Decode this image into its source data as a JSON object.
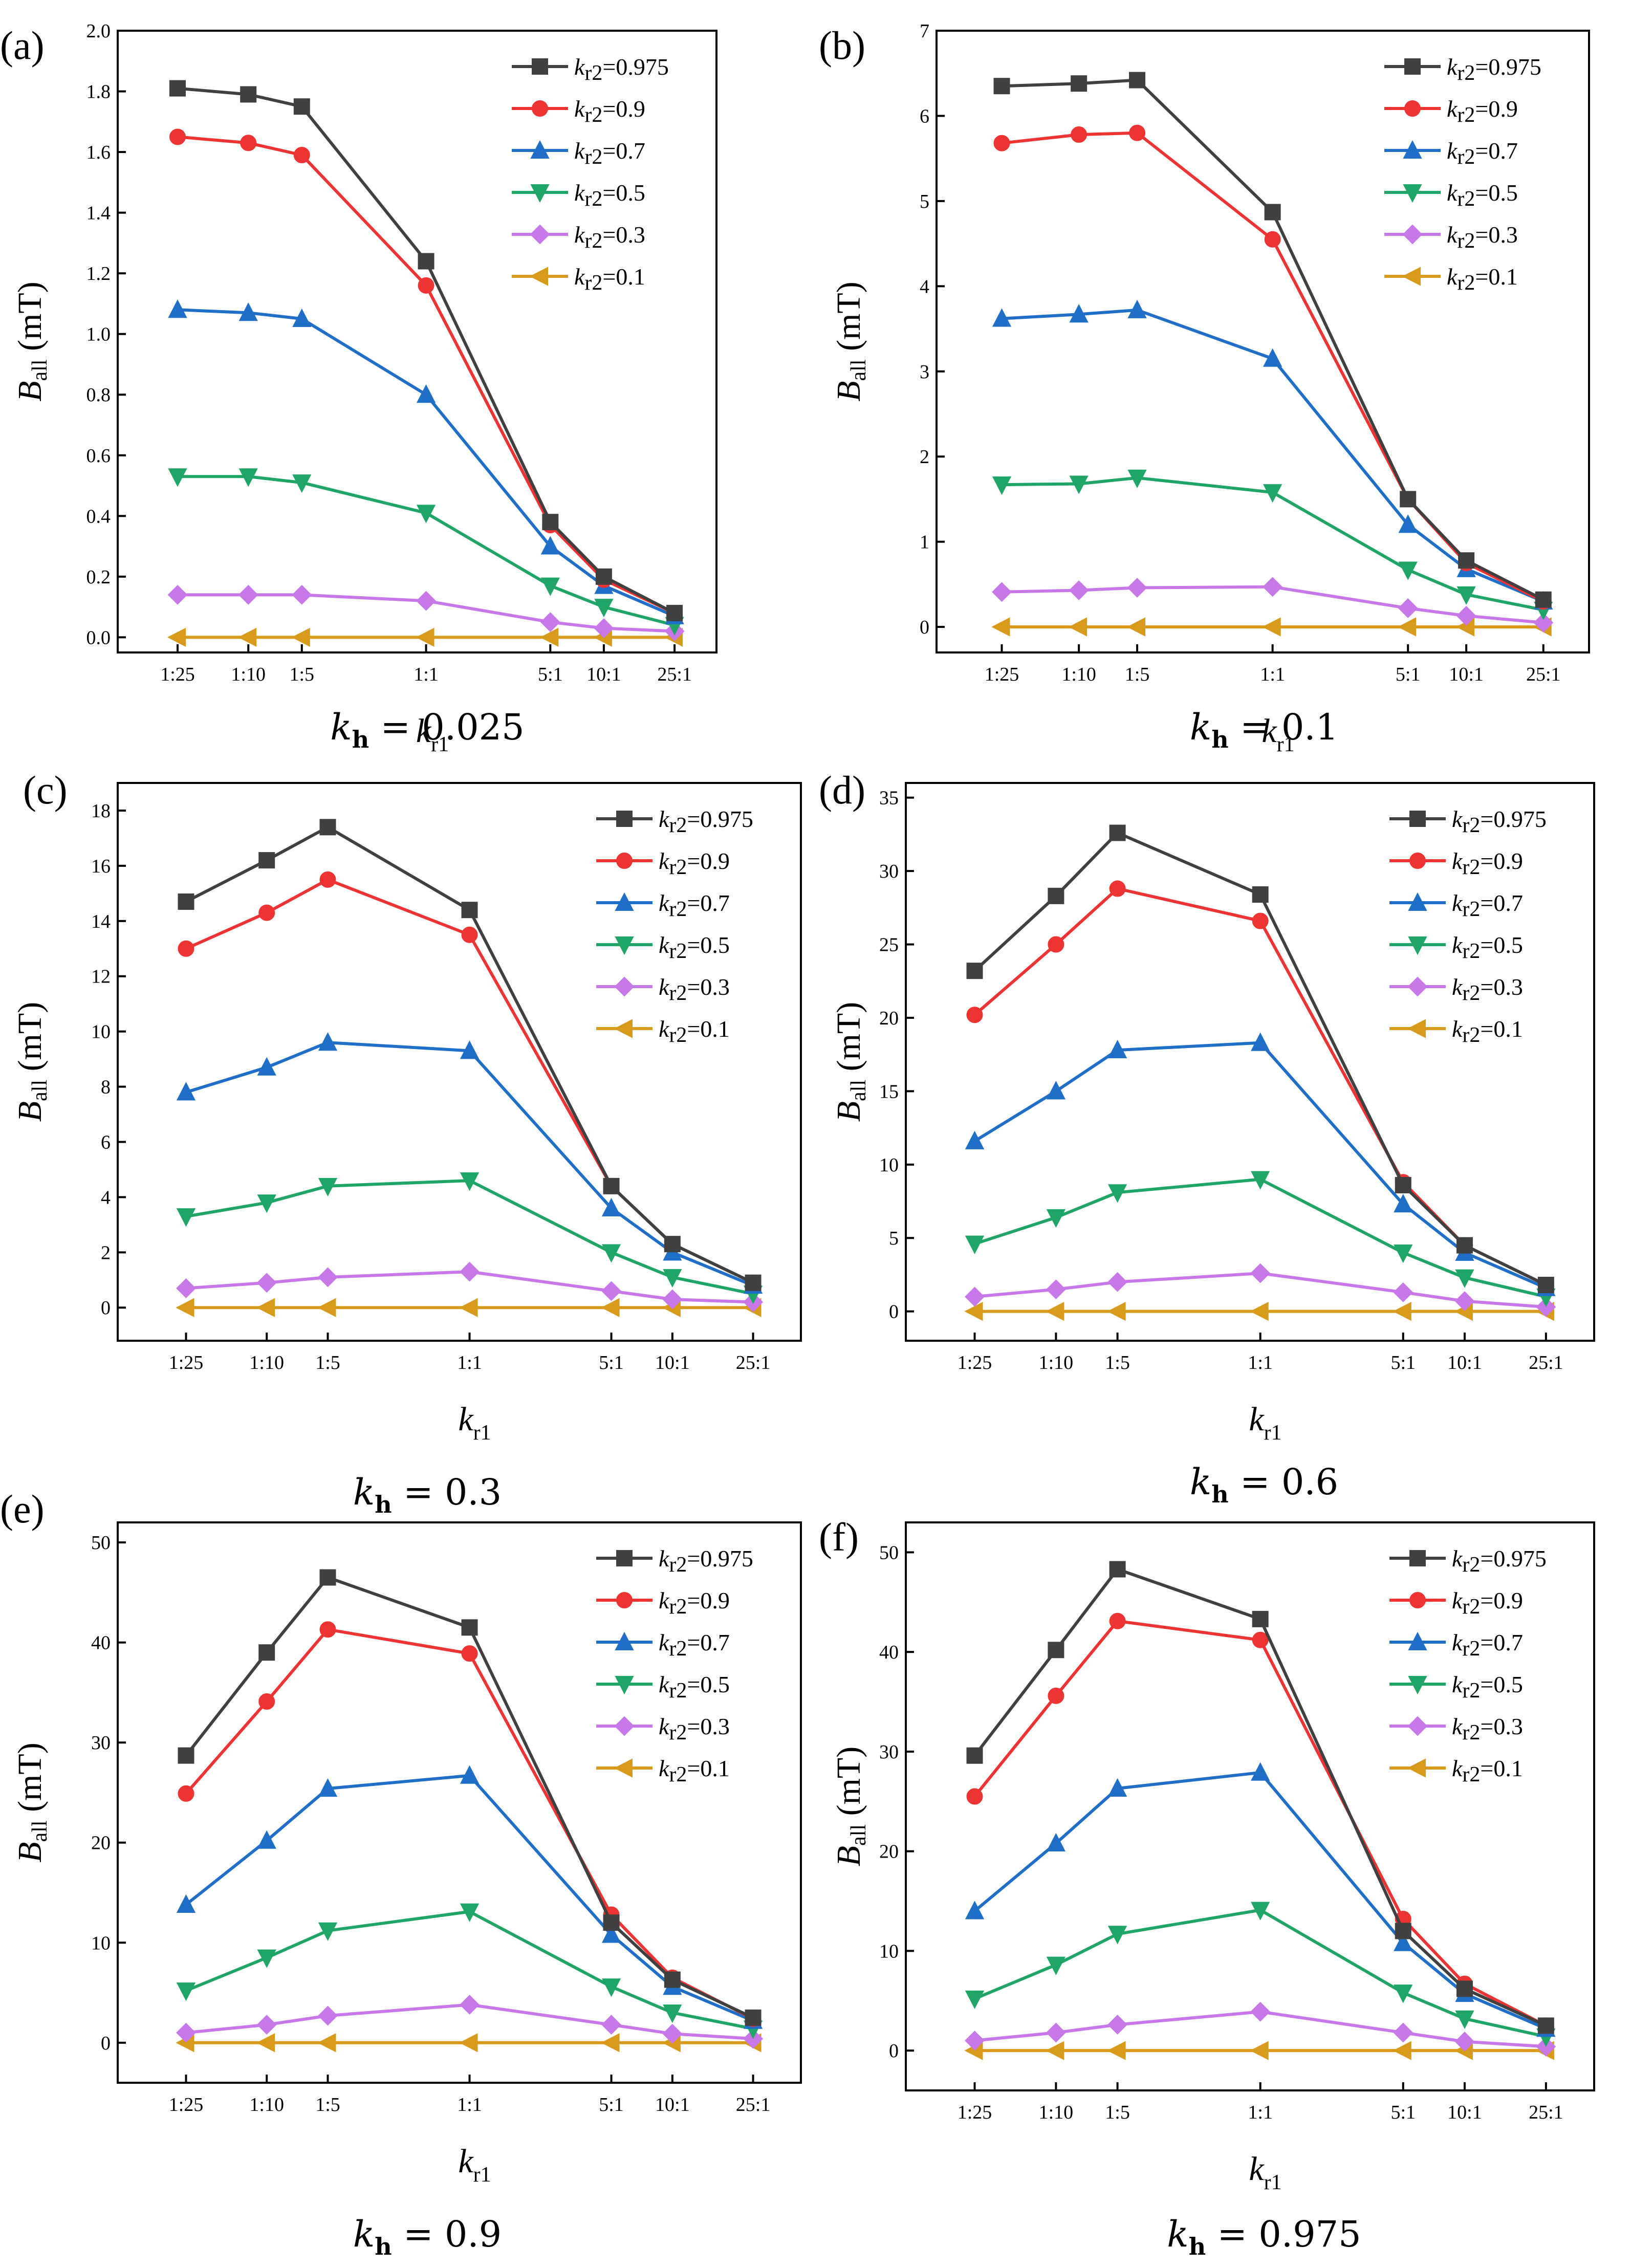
{
  "figure": {
    "ylabel_main": "B",
    "ylabel_sub": "all",
    "yunit": " (mT)",
    "xlabel_main": "k",
    "xlabel_sub": "r1"
  },
  "legend": {
    "prefix_main": "k",
    "prefix_sub": "r2",
    "colors": [
      "#404040",
      "#ee3333",
      "#1f6fc8",
      "#1fa667",
      "#c777e8",
      "#d89a1a"
    ],
    "markers": [
      "square",
      "circle",
      "triangle-up",
      "triangle-down",
      "diamond",
      "triangle-left"
    ]
  },
  "chart_data": [
    {
      "type": "line",
      "panel": "(a)",
      "kh_label": "k",
      "kh_sub": "h",
      "kh_value": " = 0.025",
      "categories": [
        "1:25",
        "1:10",
        "1:5",
        "1:1",
        "5:1",
        "10:1",
        "25:1"
      ],
      "x": [
        0.04,
        0.1,
        0.2,
        1,
        5,
        10,
        25
      ],
      "ylim": [
        -0.05,
        2.0
      ],
      "yticks": [
        "0.0",
        "0.2",
        "0.4",
        "0.6",
        "0.8",
        "1.0",
        "1.2",
        "1.4",
        "1.6",
        "1.8",
        "2.0"
      ],
      "series": [
        {
          "name": "=0.975",
          "values": [
            1.81,
            1.79,
            1.75,
            1.24,
            0.38,
            0.2,
            0.08
          ]
        },
        {
          "name": "=0.9",
          "values": [
            1.65,
            1.63,
            1.59,
            1.16,
            0.37,
            0.19,
            0.08
          ]
        },
        {
          "name": "=0.7",
          "values": [
            1.08,
            1.07,
            1.05,
            0.8,
            0.3,
            0.17,
            0.07
          ]
        },
        {
          "name": "=0.5",
          "values": [
            0.53,
            0.53,
            0.51,
            0.41,
            0.17,
            0.1,
            0.04
          ]
        },
        {
          "name": "=0.3",
          "values": [
            0.14,
            0.14,
            0.14,
            0.12,
            0.05,
            0.03,
            0.02
          ]
        },
        {
          "name": "=0.1",
          "values": [
            0.0,
            0.0,
            0.0,
            0.0,
            0.0,
            0.0,
            0.0
          ]
        }
      ]
    },
    {
      "type": "line",
      "panel": "(b)",
      "kh_label": "k",
      "kh_sub": "h",
      "kh_value": " = 0.1",
      "categories": [
        "1:25",
        "1:10",
        "1:5",
        "1:1",
        "5:1",
        "10:1",
        "25:1"
      ],
      "x": [
        0.04,
        0.1,
        0.2,
        1,
        5,
        10,
        25
      ],
      "ylim": [
        -0.3,
        7
      ],
      "yticks": [
        "0",
        "1",
        "2",
        "3",
        "4",
        "5",
        "6",
        "7"
      ],
      "series": [
        {
          "name": "=0.975",
          "values": [
            6.35,
            6.38,
            6.42,
            4.87,
            1.5,
            0.78,
            0.32
          ]
        },
        {
          "name": "=0.9",
          "values": [
            5.68,
            5.78,
            5.8,
            4.55,
            1.5,
            0.75,
            0.3
          ]
        },
        {
          "name": "=0.7",
          "values": [
            3.62,
            3.67,
            3.72,
            3.15,
            1.2,
            0.68,
            0.3
          ]
        },
        {
          "name": "=0.5",
          "values": [
            1.67,
            1.68,
            1.75,
            1.58,
            0.67,
            0.38,
            0.2
          ]
        },
        {
          "name": "=0.3",
          "values": [
            0.41,
            0.43,
            0.46,
            0.47,
            0.22,
            0.13,
            0.05
          ]
        },
        {
          "name": "=0.1",
          "values": [
            0.0,
            0.0,
            0.0,
            0.0,
            0.0,
            0.0,
            0.0
          ]
        }
      ]
    },
    {
      "type": "line",
      "panel": "(c)",
      "kh_label": "k",
      "kh_sub": "h",
      "kh_value": " = 0.3",
      "categories": [
        "1:25",
        "1:10",
        "1:5",
        "1:1",
        "5:1",
        "10:1",
        "25:1"
      ],
      "x": [
        0.04,
        0.1,
        0.2,
        1,
        5,
        10,
        25
      ],
      "ylim": [
        -1.2,
        19
      ],
      "yticks": [
        "0",
        "2",
        "4",
        "6",
        "8",
        "10",
        "12",
        "14",
        "16",
        "18"
      ],
      "series": [
        {
          "name": "=0.975",
          "values": [
            14.7,
            16.2,
            17.4,
            14.4,
            4.4,
            2.3,
            0.9
          ]
        },
        {
          "name": "=0.9",
          "values": [
            13.0,
            14.3,
            15.5,
            13.5,
            4.4,
            2.3,
            0.9
          ]
        },
        {
          "name": "=0.7",
          "values": [
            7.8,
            8.7,
            9.6,
            9.3,
            3.6,
            2.0,
            0.8
          ]
        },
        {
          "name": "=0.5",
          "values": [
            3.3,
            3.8,
            4.4,
            4.6,
            2.0,
            1.1,
            0.5
          ]
        },
        {
          "name": "=0.3",
          "values": [
            0.7,
            0.9,
            1.1,
            1.3,
            0.6,
            0.3,
            0.2
          ]
        },
        {
          "name": "=0.1",
          "values": [
            0.0,
            0.0,
            0.0,
            0.0,
            0.0,
            0.0,
            0.0
          ]
        }
      ]
    },
    {
      "type": "line",
      "panel": "(d)",
      "kh_label": "k",
      "kh_sub": "h",
      "kh_value": " = 0.6",
      "categories": [
        "1:25",
        "1:10",
        "1:5",
        "1:1",
        "5:1",
        "10:1",
        "25:1"
      ],
      "x": [
        0.04,
        0.1,
        0.2,
        1,
        5,
        10,
        25
      ],
      "ylim": [
        -2,
        36
      ],
      "yticks": [
        "0",
        "5",
        "10",
        "15",
        "20",
        "25",
        "30",
        "35"
      ],
      "series": [
        {
          "name": "=0.975",
          "values": [
            23.2,
            28.3,
            32.6,
            28.4,
            8.6,
            4.5,
            1.8
          ]
        },
        {
          "name": "=0.9",
          "values": [
            20.2,
            25.0,
            28.8,
            26.6,
            8.8,
            4.5,
            1.8
          ]
        },
        {
          "name": "=0.7",
          "values": [
            11.6,
            15.0,
            17.8,
            18.3,
            7.3,
            4.0,
            1.6
          ]
        },
        {
          "name": "=0.5",
          "values": [
            4.6,
            6.4,
            8.1,
            9.0,
            4.0,
            2.3,
            1.0
          ]
        },
        {
          "name": "=0.3",
          "values": [
            1.0,
            1.5,
            2.0,
            2.6,
            1.3,
            0.7,
            0.3
          ]
        },
        {
          "name": "=0.1",
          "values": [
            0.0,
            0.0,
            0.0,
            0.0,
            0.0,
            0.0,
            0.0
          ]
        }
      ]
    },
    {
      "type": "line",
      "panel": "(e)",
      "kh_label": "k",
      "kh_sub": "h",
      "kh_value": " = 0.9",
      "categories": [
        "1:25",
        "1:10",
        "1:5",
        "1:1",
        "5:1",
        "10:1",
        "25:1"
      ],
      "x": [
        0.04,
        0.1,
        0.2,
        1,
        5,
        10,
        25
      ],
      "ylim": [
        -4,
        52
      ],
      "yticks": [
        "0",
        "10",
        "20",
        "30",
        "40",
        "50"
      ],
      "series": [
        {
          "name": "=0.975",
          "values": [
            28.7,
            39.0,
            46.5,
            41.5,
            12.0,
            6.3,
            2.5
          ]
        },
        {
          "name": "=0.9",
          "values": [
            24.9,
            34.1,
            41.3,
            38.9,
            12.8,
            6.5,
            2.4
          ]
        },
        {
          "name": "=0.7",
          "values": [
            13.8,
            20.2,
            25.4,
            26.7,
            10.8,
            5.6,
            2.2
          ]
        },
        {
          "name": "=0.5",
          "values": [
            5.2,
            8.5,
            11.2,
            13.1,
            5.6,
            3.0,
            1.4
          ]
        },
        {
          "name": "=0.3",
          "values": [
            1.0,
            1.8,
            2.7,
            3.8,
            1.8,
            0.9,
            0.4
          ]
        },
        {
          "name": "=0.1",
          "values": [
            0.0,
            0.0,
            0.0,
            0.0,
            0.0,
            0.0,
            0.0
          ]
        }
      ]
    },
    {
      "type": "line",
      "panel": "(f)",
      "kh_label": "k",
      "kh_sub": "h",
      "kh_value": " = 0.975",
      "categories": [
        "1:25",
        "1:10",
        "1:5",
        "1:1",
        "5:1",
        "10:1",
        "25:1"
      ],
      "x": [
        0.04,
        0.1,
        0.2,
        1,
        5,
        10,
        25
      ],
      "ylim": [
        -4,
        53
      ],
      "yticks": [
        "0",
        "10",
        "20",
        "30",
        "40",
        "50"
      ],
      "series": [
        {
          "name": "=0.975",
          "values": [
            29.6,
            40.2,
            48.3,
            43.3,
            12.0,
            6.2,
            2.5
          ]
        },
        {
          "name": "=0.9",
          "values": [
            25.5,
            35.6,
            43.1,
            41.2,
            13.2,
            6.7,
            2.5
          ]
        },
        {
          "name": "=0.7",
          "values": [
            14.0,
            20.8,
            26.3,
            27.9,
            10.8,
            5.7,
            2.2
          ]
        },
        {
          "name": "=0.5",
          "values": [
            5.2,
            8.6,
            11.7,
            14.1,
            5.8,
            3.2,
            1.4
          ]
        },
        {
          "name": "=0.3",
          "values": [
            1.0,
            1.8,
            2.6,
            3.9,
            1.8,
            0.9,
            0.4
          ]
        },
        {
          "name": "=0.1",
          "values": [
            0.0,
            0.0,
            0.0,
            0.0,
            0.0,
            0.0,
            0.0
          ]
        }
      ]
    }
  ]
}
